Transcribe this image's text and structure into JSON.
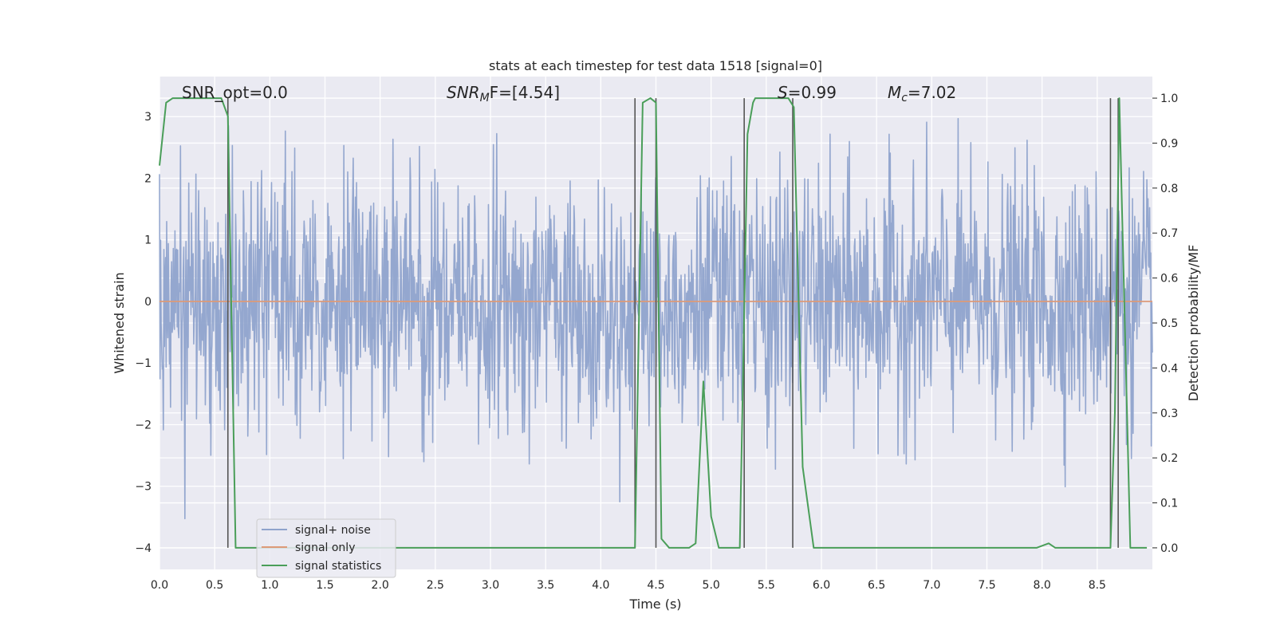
{
  "chart_data": {
    "type": "line",
    "title": "stats at each timestep for test data 1518 [signal=0]",
    "xlabel": "Time (s)",
    "ylabel_left": "Whitened strain",
    "ylabel_right": "Detection probability/MF",
    "xlim": [
      0,
      9.0
    ],
    "ylim_left": [
      -4.35,
      3.65
    ],
    "ylim_right": [
      -0.048,
      1.048
    ],
    "x_ticks": [
      "0.0",
      "0.5",
      "1.0",
      "1.5",
      "2.0",
      "2.5",
      "3.0",
      "3.5",
      "4.0",
      "4.5",
      "5.0",
      "5.5",
      "6.0",
      "6.5",
      "7.0",
      "7.5",
      "8.0",
      "8.5"
    ],
    "y_left_ticks": [
      "3",
      "2",
      "1",
      "0",
      "−1",
      "−2",
      "−3",
      "−4"
    ],
    "y_right_ticks": [
      "1.0",
      "0.9",
      "0.8",
      "0.7",
      "0.6",
      "0.5",
      "0.4",
      "0.3",
      "0.2",
      "0.1",
      "0.0"
    ],
    "grid": true,
    "legend_position": "lower-left",
    "annotations": {
      "snr_opt": "SNR_opt=0.0",
      "snr_mf_sym": "SNR",
      "snr_mf_sub": "M",
      "snr_mf_rest": "F=[4.54]",
      "s_sym": "S",
      "s_rest": "=0.99",
      "mc_sym": "M",
      "mc_sub": "c",
      "mc_rest": "=7.02"
    },
    "series": [
      {
        "name": "signal+ noise",
        "color": "#8fa3cc",
        "axis": "left",
        "noise": {
          "x_start": 0,
          "x_end": 9.0,
          "sample_count": 1800,
          "std": 1.0,
          "min": -4.0,
          "max": 3.3
        }
      },
      {
        "name": "signal only",
        "color": "#dd9a78",
        "axis": "left",
        "x": [
          0,
          9.0
        ],
        "y": [
          0,
          0
        ]
      },
      {
        "name": "signal statistics",
        "color": "#4a9e59",
        "axis": "right",
        "x": [
          0,
          0.06,
          0.12,
          0.5,
          0.56,
          0.62,
          0.69,
          4.31,
          4.38,
          4.45,
          4.5,
          4.55,
          4.62,
          4.8,
          4.86,
          4.93,
          5.0,
          5.07,
          5.26,
          5.33,
          5.38,
          5.4,
          5.7,
          5.75,
          5.83,
          5.93,
          7.95,
          8.06,
          8.12,
          8.55,
          8.62,
          8.66,
          8.7,
          8.8,
          8.95
        ],
        "y": [
          0.85,
          0.99,
          1.0,
          1.0,
          1.0,
          0.96,
          0.0,
          0.0,
          0.99,
          1.0,
          0.99,
          0.02,
          0.0,
          0.0,
          0.01,
          0.37,
          0.07,
          0.0,
          0.0,
          0.92,
          0.99,
          1.0,
          1.0,
          0.98,
          0.18,
          0.0,
          0.0,
          0.01,
          0.0,
          0.0,
          0.0,
          0.3,
          1.0,
          0.0,
          0.0
        ]
      }
    ],
    "vertical_markers": {
      "color": "#555555",
      "x": [
        0.62,
        4.31,
        4.5,
        5.3,
        5.74,
        8.62,
        8.69
      ],
      "y_top_right": 1.0,
      "y_bottom_right": 0.0
    }
  }
}
